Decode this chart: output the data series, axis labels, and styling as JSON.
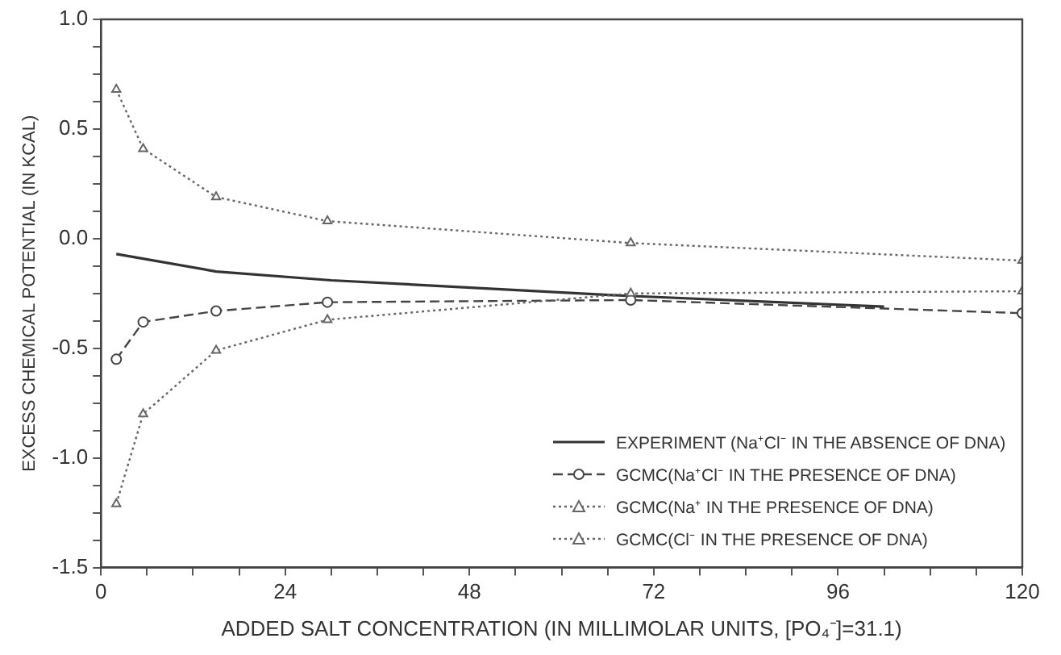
{
  "chart_data": {
    "type": "line",
    "xlabel": "ADDED SALT CONCENTRATION (IN MILLIMOLAR UNITS, [PO₄⁻]=31.1)",
    "ylabel": "EXCESS CHEMICAL POTENTIAL (IN KCAL)",
    "x": [
      2,
      5.5,
      15,
      29.5,
      69,
      120
    ],
    "series": [
      {
        "name": "EXPERIMENT (Na⁺Cl⁻ IN THE ABSENCE OF DNA)",
        "color": "#333333",
        "x": [
          2,
          15,
          30,
          68,
          102
        ],
        "values": [
          -0.07,
          -0.15,
          -0.19,
          -0.26,
          -0.31
        ],
        "marker": "none",
        "line_style": "solid"
      },
      {
        "name": "GCMC(Na⁺Cl⁻ IN THE PRESENCE OF DNA)",
        "color": "#444444",
        "values": [
          -0.55,
          -0.38,
          -0.33,
          -0.29,
          -0.28,
          -0.34
        ],
        "marker": "circle",
        "line_style": "dashed"
      },
      {
        "name": "GCMC(Na⁺ IN THE PRESENCE OF DNA)",
        "color": "#666666",
        "values": [
          -1.21,
          -0.8,
          -0.51,
          -0.37,
          -0.25,
          -0.24
        ],
        "marker": "triangle",
        "line_style": "dotted"
      },
      {
        "name": "GCMC(Cl⁻ IN THE PRESENCE OF DNA)",
        "color": "#666666",
        "values": [
          0.68,
          0.41,
          0.19,
          0.08,
          -0.02,
          -0.1
        ],
        "marker": "triangle",
        "line_style": "dotted"
      }
    ],
    "xlim": [
      0,
      120
    ],
    "xticks": [
      0,
      {
        "value": 6,
        "label": null
      },
      {
        "value": 12,
        "label": null
      },
      {
        "value": 18,
        "label": null
      },
      24,
      {
        "value": 30,
        "label": null
      },
      {
        "value": 36,
        "label": null
      },
      {
        "value": 42,
        "label": null
      },
      48,
      {
        "value": 54,
        "label": null
      },
      {
        "value": 60,
        "label": null
      },
      {
        "value": 66,
        "label": null
      },
      72,
      {
        "value": 78,
        "label": null
      },
      {
        "value": 84,
        "label": null
      },
      {
        "value": 90,
        "label": null
      },
      96,
      {
        "value": 102,
        "label": null
      },
      {
        "value": 108,
        "label": null
      },
      {
        "value": 114,
        "label": null
      },
      120
    ],
    "ylim": [
      -1.5,
      1.0
    ],
    "yticks": [
      -1.5,
      {
        "value": -1.375,
        "label": null
      },
      {
        "value": -1.25,
        "label": null
      },
      {
        "value": -1.125,
        "label": null
      },
      {
        "value": -1,
        "label": "-1.0"
      },
      {
        "value": -0.875,
        "label": null
      },
      {
        "value": -0.75,
        "label": null
      },
      {
        "value": -0.625,
        "label": null
      },
      -0.5,
      {
        "value": -0.375,
        "label": null
      },
      {
        "value": -0.25,
        "label": null
      },
      {
        "value": -0.125,
        "label": null
      },
      {
        "value": 0,
        "label": "0.0"
      },
      {
        "value": 0.125,
        "label": null
      },
      {
        "value": 0.25,
        "label": null
      },
      {
        "value": 0.375,
        "label": null
      },
      0.5,
      {
        "value": 0.625,
        "label": null
      },
      {
        "value": 0.75,
        "label": null
      },
      {
        "value": 0.875,
        "label": null
      },
      {
        "value": 1,
        "label": "1.0"
      }
    ],
    "grid": false,
    "legend": "bottom right"
  }
}
